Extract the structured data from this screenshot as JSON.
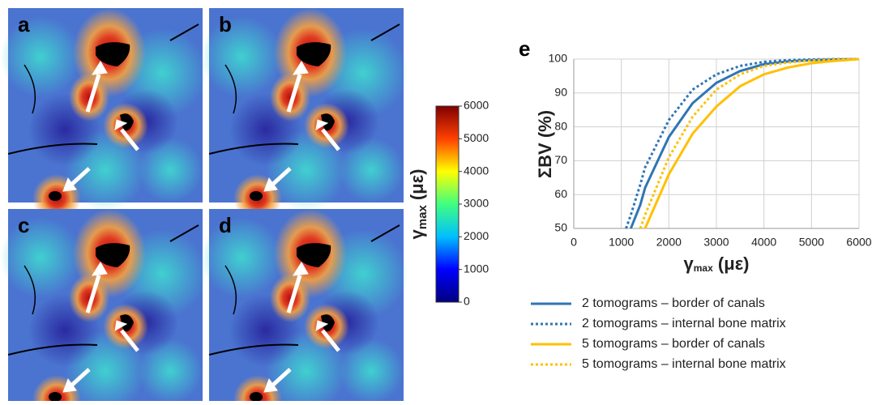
{
  "panels": [
    "a",
    "b",
    "c",
    "d"
  ],
  "chart_data": [
    {
      "type": "colorbar",
      "y_label": "γ",
      "y_label_sub": "max",
      "y_label_unit": " (με)",
      "ylim": [
        0,
        6000
      ],
      "yticks": [
        0,
        1000,
        2000,
        3000,
        4000,
        5000,
        6000
      ],
      "colors": [
        "#00007f",
        "#0000ff",
        "#00bfff",
        "#40ff80",
        "#ffff00",
        "#ff4000",
        "#7f0000"
      ]
    },
    {
      "type": "line",
      "panel_label": "e",
      "y_label": "ΣBV (%)",
      "x_label": "γ",
      "x_label_sub": "max",
      "x_label_unit": " (με)",
      "x": [
        1100,
        1200,
        1400,
        1500,
        2000,
        2500,
        3000,
        3500,
        4000,
        4500,
        5000,
        5500,
        6000
      ],
      "xlim": [
        0,
        6000
      ],
      "xticks": [
        0,
        1000,
        2000,
        3000,
        4000,
        5000,
        6000
      ],
      "ylim": [
        50,
        100
      ],
      "yticks": [
        50,
        60,
        70,
        80,
        90,
        100
      ],
      "grid": true,
      "series": [
        {
          "name": "2 tomograms – border of canals",
          "color": "#2e75b6",
          "dash": false,
          "values": [
            null,
            50,
            57,
            62,
            77,
            87,
            93,
            96.5,
            98.5,
            99.3,
            99.7,
            99.9,
            100
          ]
        },
        {
          "name": "2 tomograms – internal bone matrix",
          "color": "#2e75b6",
          "dash": true,
          "values": [
            50,
            54,
            63,
            68,
            82,
            91,
            95.5,
            98,
            99.2,
            99.7,
            99.9,
            100,
            100
          ]
        },
        {
          "name": "5 tomograms – border of canals",
          "color": "#ffc000",
          "dash": false,
          "values": [
            null,
            null,
            null,
            50,
            66,
            78,
            86,
            92,
            95.5,
            97.5,
            98.8,
            99.5,
            100
          ]
        },
        {
          "name": "5 tomograms – internal bone matrix",
          "color": "#ffc000",
          "dash": true,
          "values": [
            null,
            null,
            50,
            54,
            71,
            83,
            91,
            95.5,
            98,
            99,
            99.6,
            99.9,
            100
          ]
        }
      ]
    }
  ]
}
